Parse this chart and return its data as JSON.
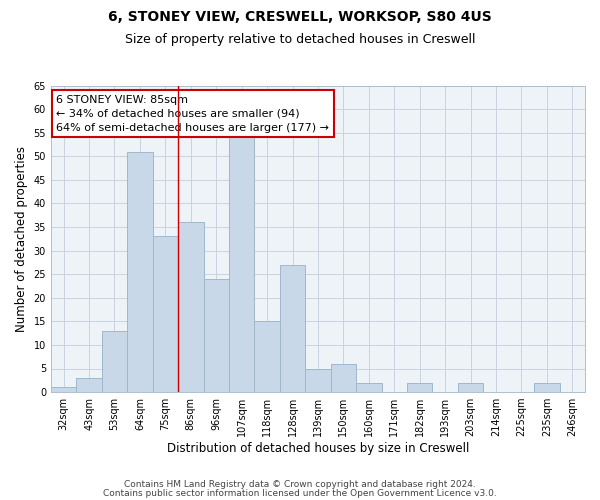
{
  "title": "6, STONEY VIEW, CRESWELL, WORKSOP, S80 4US",
  "subtitle": "Size of property relative to detached houses in Creswell",
  "xlabel": "Distribution of detached houses by size in Creswell",
  "ylabel": "Number of detached properties",
  "bins": [
    "32sqm",
    "43sqm",
    "53sqm",
    "64sqm",
    "75sqm",
    "86sqm",
    "96sqm",
    "107sqm",
    "118sqm",
    "128sqm",
    "139sqm",
    "150sqm",
    "160sqm",
    "171sqm",
    "182sqm",
    "193sqm",
    "203sqm",
    "214sqm",
    "225sqm",
    "235sqm",
    "246sqm"
  ],
  "values": [
    1,
    3,
    13,
    51,
    33,
    36,
    24,
    54,
    15,
    27,
    5,
    6,
    2,
    0,
    2,
    0,
    2,
    0,
    0,
    2,
    0
  ],
  "bar_color": "#c8d8e8",
  "bar_edgecolor": "#a0b8cc",
  "highlight_bin_index": 5,
  "annotation_title": "6 STONEY VIEW: 85sqm",
  "annotation_line1": "← 34% of detached houses are smaller (94)",
  "annotation_line2": "64% of semi-detached houses are larger (177) →",
  "annotation_box_color": "#ffffff",
  "annotation_box_edgecolor": "#cc0000",
  "ylim": [
    0,
    65
  ],
  "yticks": [
    0,
    5,
    10,
    15,
    20,
    25,
    30,
    35,
    40,
    45,
    50,
    55,
    60,
    65
  ],
  "footer_line1": "Contains HM Land Registry data © Crown copyright and database right 2024.",
  "footer_line2": "Contains public sector information licensed under the Open Government Licence v3.0.",
  "bg_color": "#ffffff",
  "plot_bg_color": "#eef3f8",
  "grid_color": "#c8d4e0",
  "title_fontsize": 10,
  "subtitle_fontsize": 9,
  "axis_label_fontsize": 8.5,
  "tick_fontsize": 7,
  "annotation_fontsize": 8,
  "footer_fontsize": 6.5
}
